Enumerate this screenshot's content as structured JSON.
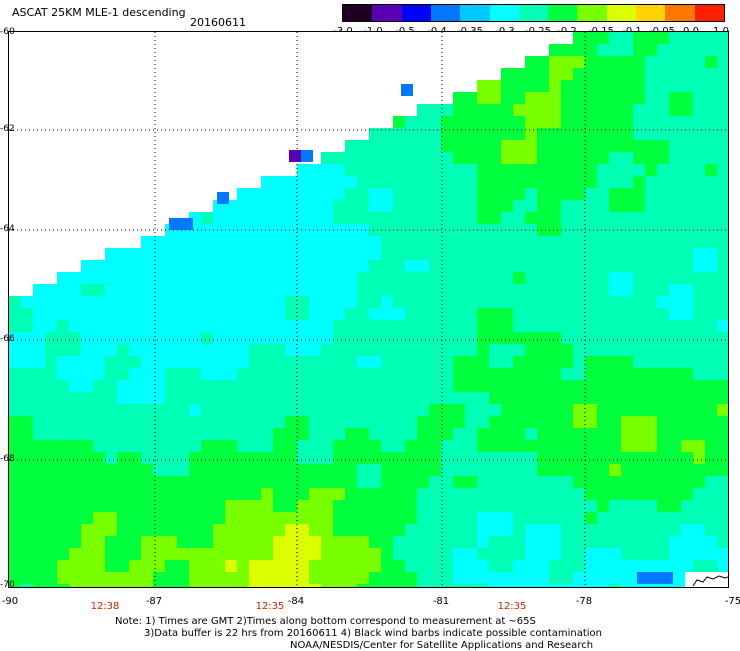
{
  "title": "ASCAT 25KM MLE-1 descending",
  "date": "20160611",
  "colorbar": {
    "labels": [
      "-3.0",
      "-1.0",
      "-0.5",
      "-0.4",
      "-0.35",
      "-0.3",
      "-0.25",
      "-0.2",
      "-0.15",
      "-0.1",
      "-0.05",
      "0.0",
      "1.0"
    ],
    "colors": [
      "#200020",
      "#5a00b4",
      "#0000ff",
      "#0078ff",
      "#00c8ff",
      "#00ffff",
      "#00ffb4",
      "#00ff3c",
      "#78ff00",
      "#dcff00",
      "#ffd200",
      "#ff7800",
      "#ff1e00"
    ]
  },
  "latitudes": [
    "-60",
    "-62",
    "-64",
    "-66",
    "-68",
    "-70"
  ],
  "longitudes": [
    "-90",
    "-87",
    "-84",
    "-81",
    "-78",
    "-75"
  ],
  "times": [
    "12:38",
    "12:35",
    "12:35"
  ],
  "notes": [
    "Note: 1) Times are GMT 2)Times along bottom correspond to measurement at ~65S",
    "3)Data buffer is 22 hrs from 20160611 4) Black wind barbs indicate possible contamination",
    "NOAA/NESDIS/Center for Satellite Applications and Research"
  ]
}
